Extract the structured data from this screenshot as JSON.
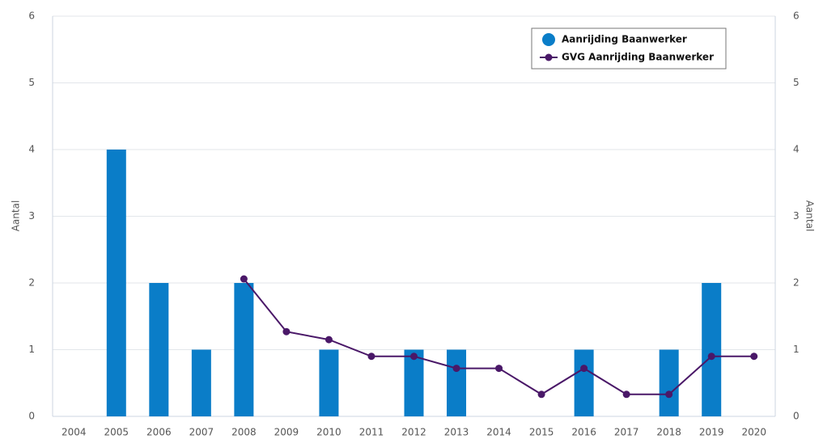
{
  "chart_data": {
    "type": "bar",
    "categories": [
      "2004",
      "2005",
      "2006",
      "2007",
      "2008",
      "2009",
      "2010",
      "2011",
      "2012",
      "2013",
      "2014",
      "2015",
      "2016",
      "2017",
      "2018",
      "2019",
      "2020"
    ],
    "series": [
      {
        "name": "Aanrijding Baanwerker",
        "type": "bar",
        "color": "#0a7dc8",
        "values": [
          0,
          4,
          2,
          1,
          2,
          0,
          1,
          0,
          1,
          1,
          0,
          0,
          1,
          0,
          1,
          2,
          0
        ]
      },
      {
        "name": "GVG Aanrijding Baanwerker",
        "type": "line",
        "axis": "y2",
        "color": "#4a1868",
        "values": [
          null,
          null,
          null,
          null,
          2.06,
          1.27,
          1.15,
          0.9,
          0.9,
          0.72,
          0.72,
          0.33,
          0.72,
          0.33,
          0.33,
          0.9,
          0.9
        ]
      }
    ],
    "ylabel": "Aantal",
    "y2label": "Aantal",
    "ylim": [
      0,
      6
    ],
    "yticks": [
      0,
      1,
      2,
      3,
      4,
      5,
      6
    ],
    "y2lim": [
      0,
      6
    ],
    "y2ticks": [
      0,
      1,
      2,
      3,
      4,
      5,
      6
    ],
    "grid": true,
    "legend": "top-right"
  }
}
